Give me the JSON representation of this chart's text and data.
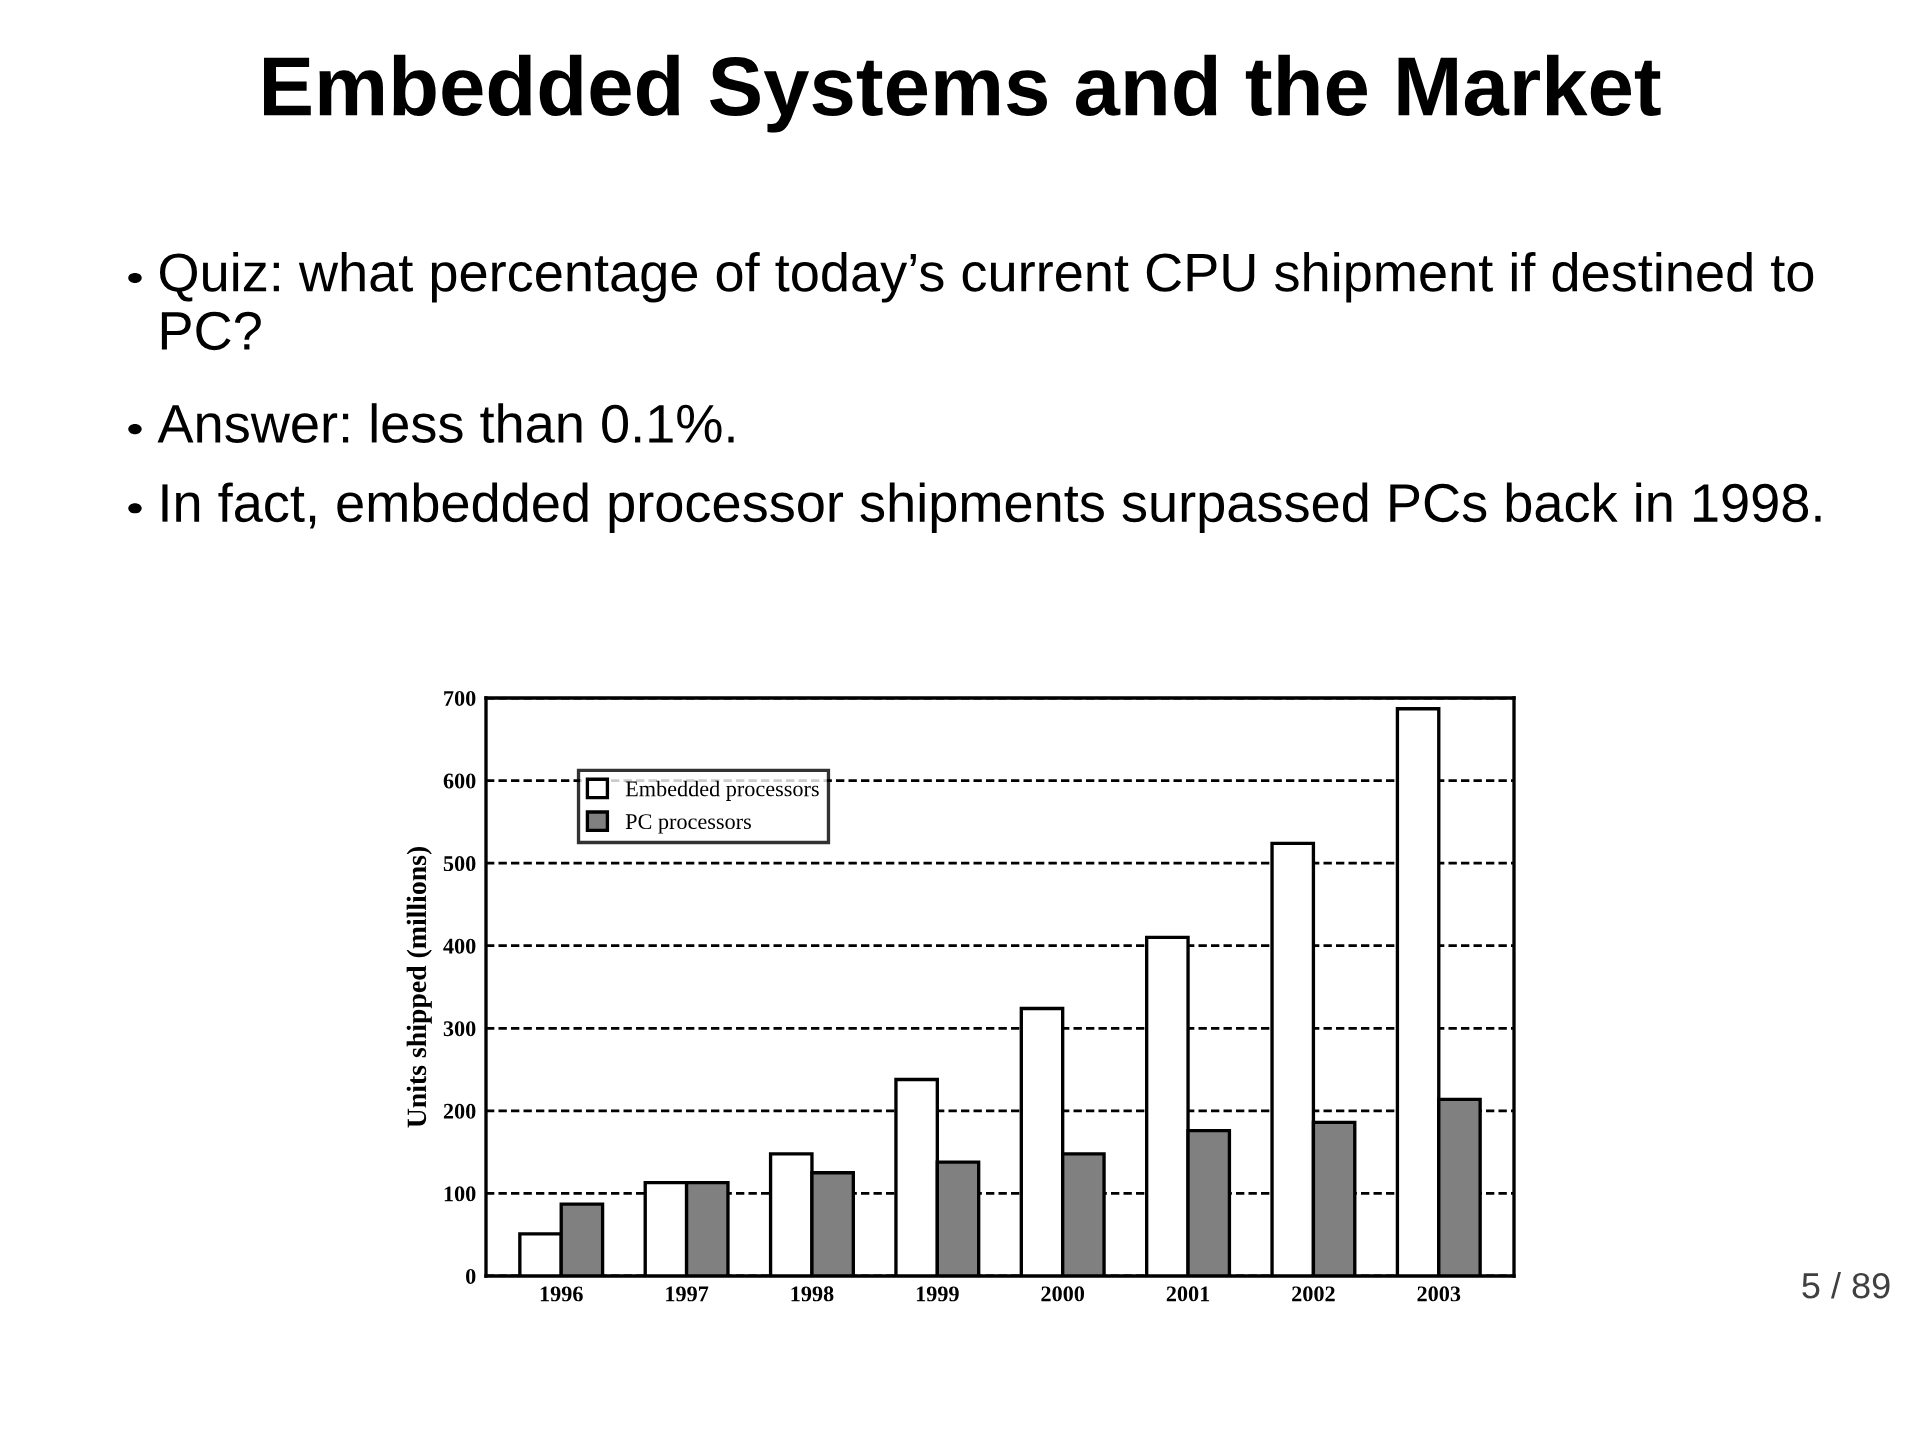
{
  "chart_data": {
    "type": "bar",
    "title": "Embedded Systems and the Market",
    "annotations": [
      "Quiz: what percentage of today’s current CPU shipment if destined to PC?",
      "Answer: less than 0.1%.",
      "In fact, embedded processor shipments surpassed PCs back in 1998.",
      "5 / 89"
    ],
    "ylabel": "Units shipped (millions)",
    "categories": [
      "1996",
      "1997",
      "1998",
      "1999",
      "2000",
      "2001",
      "2002",
      "2003"
    ],
    "series": [
      {
        "name": "Embedded processors",
        "color": "#ffffff",
        "values": [
          51,
          113,
          148,
          238,
          324,
          410,
          524,
          687
        ]
      },
      {
        "name": "PC processors",
        "color": "#808080",
        "values": [
          87,
          113,
          125,
          138,
          148,
          176,
          186,
          214
        ]
      }
    ],
    "ylim": [
      0,
      700
    ],
    "yticks": [
      0,
      100,
      200,
      300,
      400,
      500,
      600,
      700
    ],
    "grid": "y",
    "legend": "top left"
  }
}
